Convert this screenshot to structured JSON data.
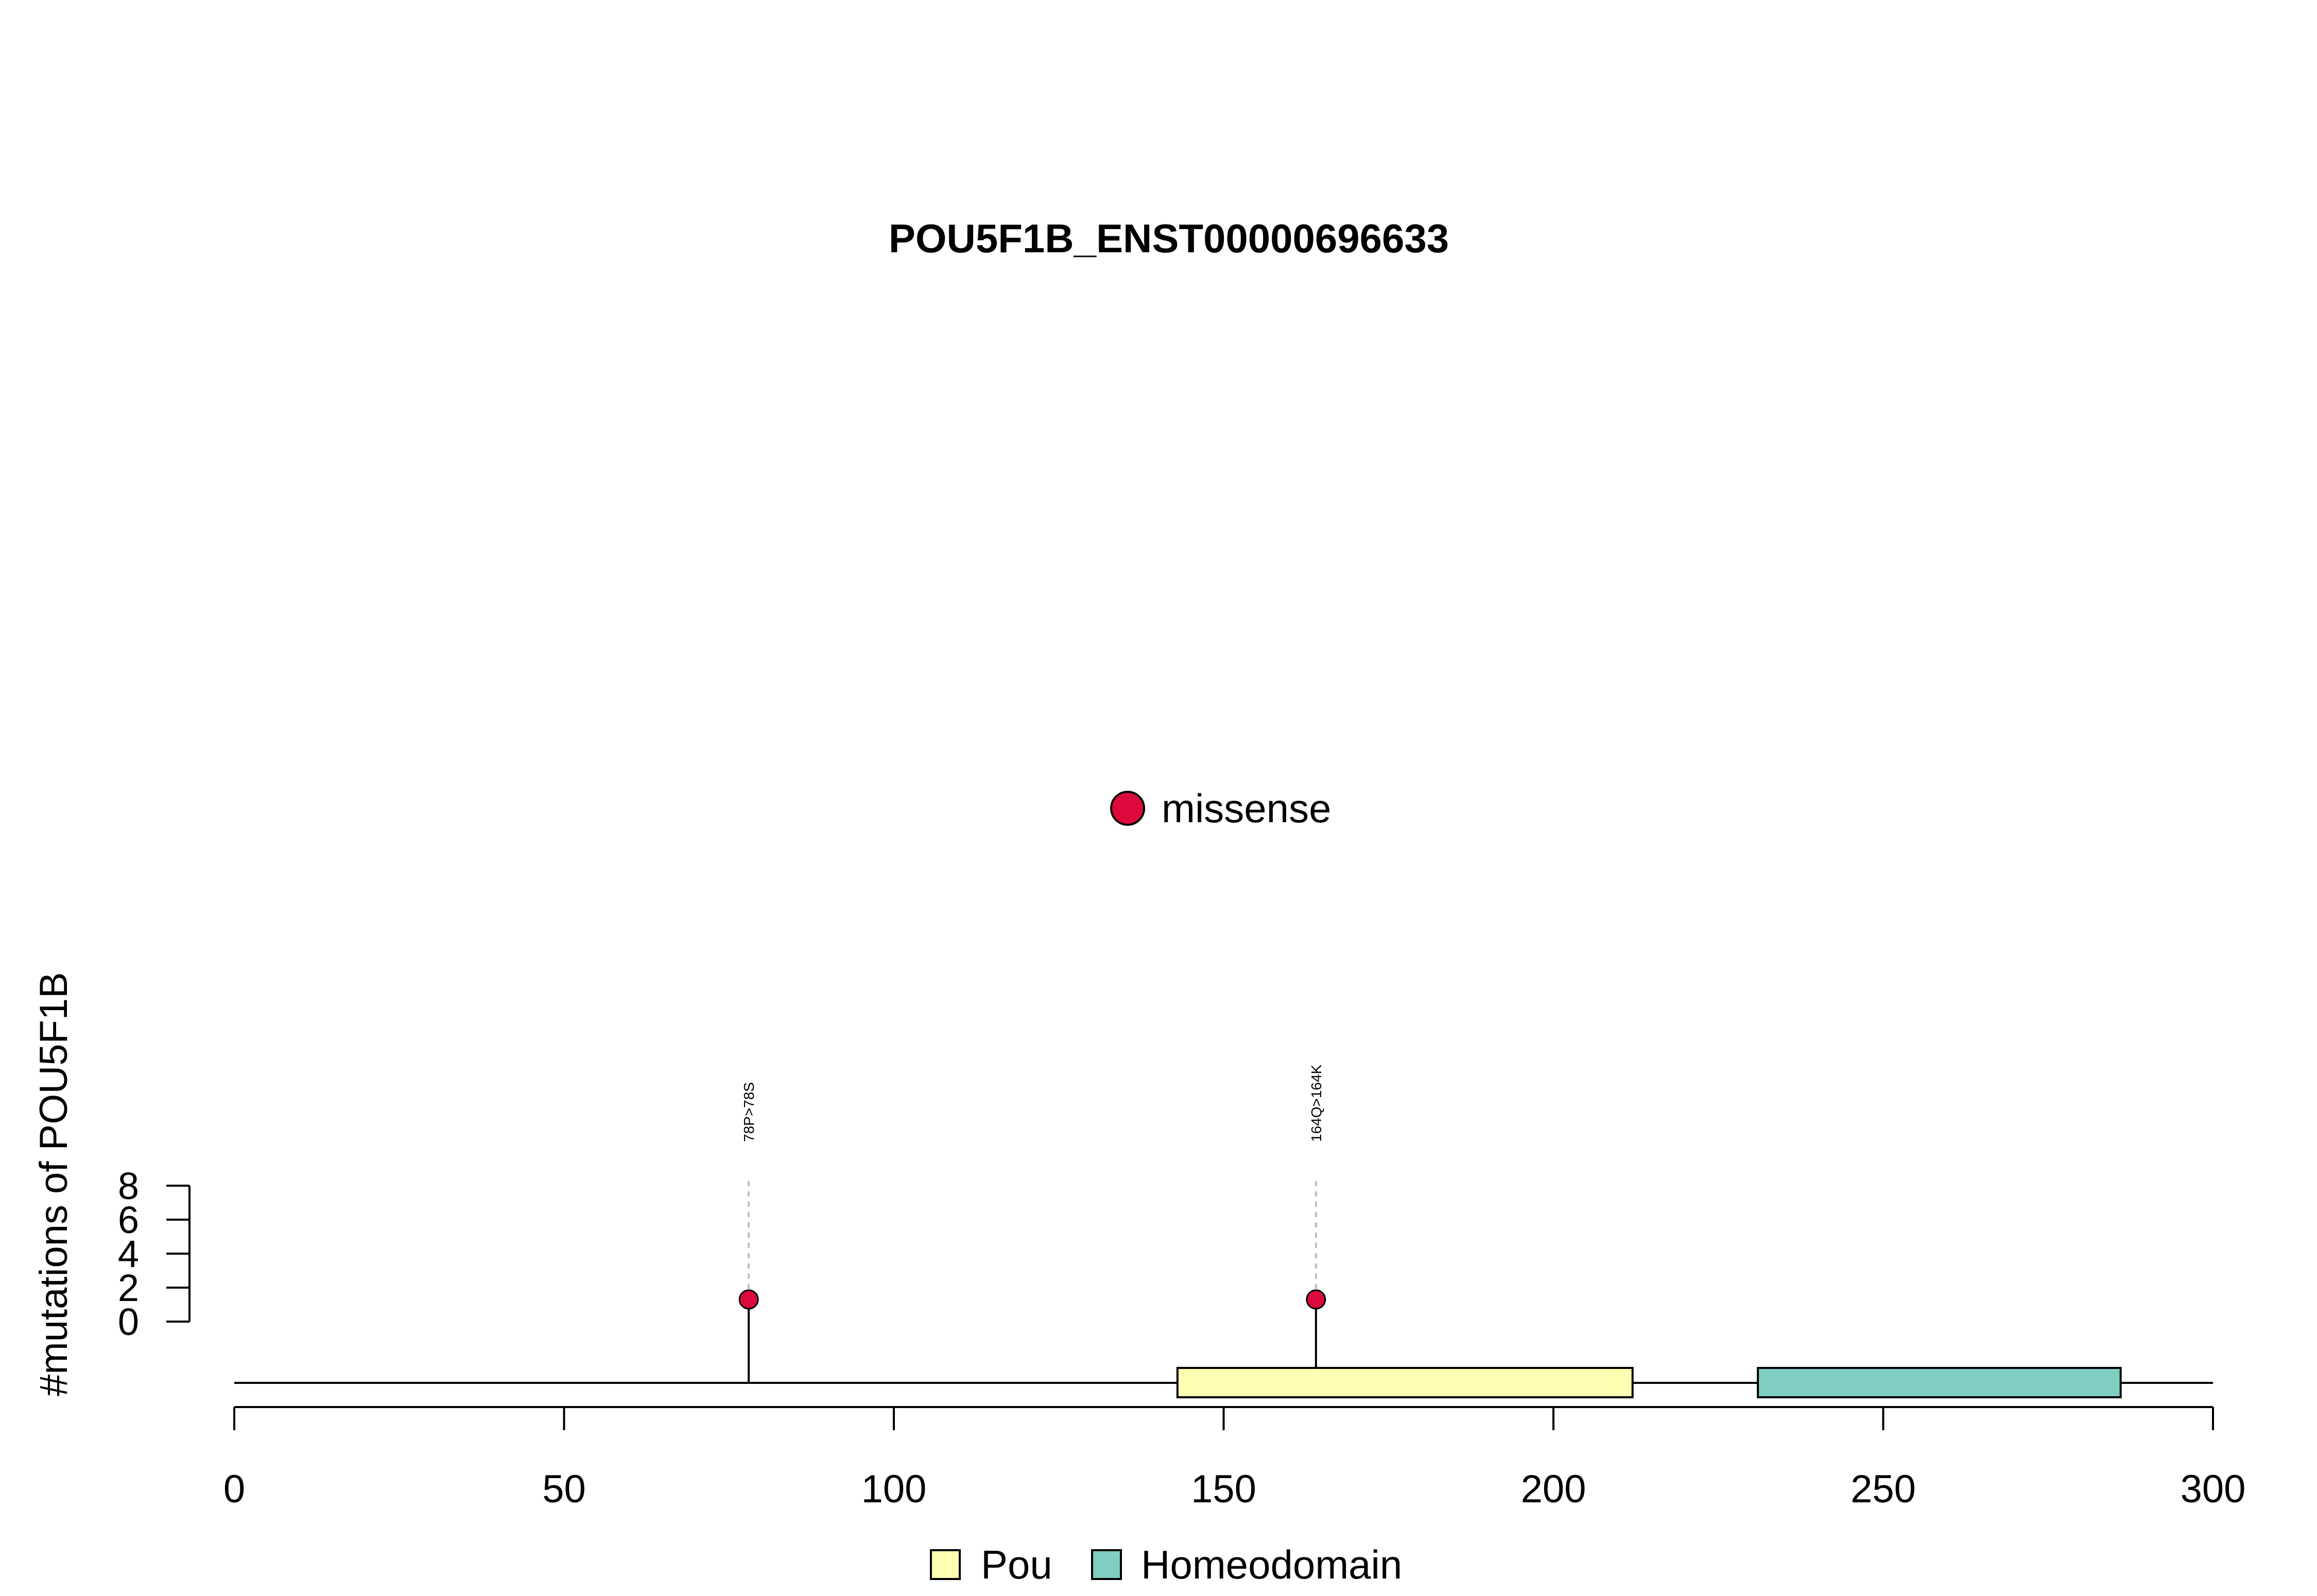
{
  "chart_data": {
    "type": "lollipop",
    "title": "POU5F1B_ENST00000696633",
    "ylabel": "#mutations of POU5F1B",
    "x_axis": {
      "range": [
        0,
        300
      ],
      "ticks": [
        0,
        50,
        100,
        150,
        200,
        250,
        300
      ]
    },
    "y_axis": {
      "range": [
        0,
        8
      ],
      "ticks": [
        0,
        2,
        4,
        6,
        8
      ]
    },
    "mutations": [
      {
        "position": 78,
        "count": 1,
        "label": "78P>78S",
        "type": "missense"
      },
      {
        "position": 164,
        "count": 1,
        "label": "164Q>164K",
        "type": "missense"
      }
    ],
    "domains": [
      {
        "name": "Pou",
        "start": 143,
        "end": 212,
        "color": "#FFFFB3"
      },
      {
        "name": "Homeodomain",
        "start": 231,
        "end": 286,
        "color": "#80CDC1"
      }
    ],
    "mutation_legend": [
      {
        "label": "missense",
        "color": "#DC0A3C"
      }
    ],
    "domain_legend": [
      {
        "label": "Pou",
        "color": "#FFFFB3"
      },
      {
        "label": "Homeodomain",
        "color": "#80CDC1"
      }
    ]
  }
}
